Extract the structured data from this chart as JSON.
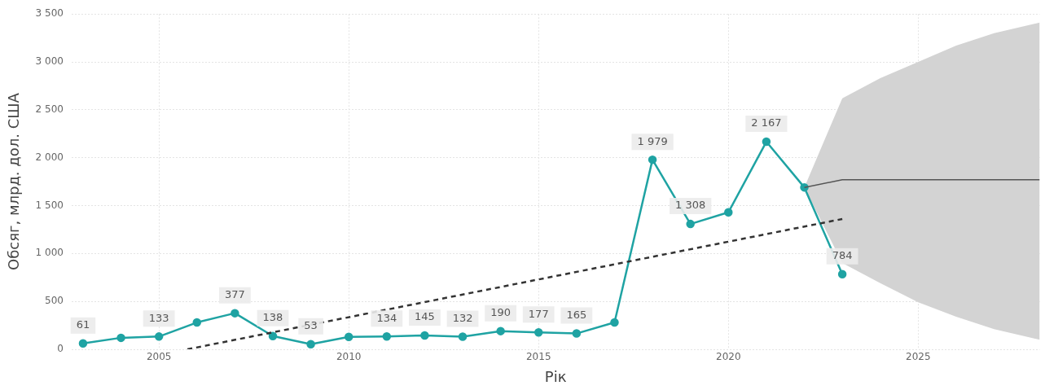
{
  "chart_data": {
    "type": "line",
    "xlabel": "Рік",
    "ylabel": "Обсяг, млрд. дол. США",
    "xlim": [
      2002.7,
      2028.2
    ],
    "xticks": [
      2005,
      2010,
      2015,
      2020,
      2025
    ],
    "ylim": [
      0,
      3500
    ],
    "yticks": [
      0,
      500,
      {
        "value": 1000,
        "label": "1 000"
      },
      {
        "value": 1500,
        "label": "1 500"
      },
      {
        "value": 2000,
        "label": "2 000"
      },
      {
        "value": 2500,
        "label": "2 500"
      },
      {
        "value": 3000,
        "label": "3 000"
      },
      {
        "value": 3500,
        "label": "3 500"
      }
    ],
    "grid": true,
    "marker": "circle",
    "series": [
      {
        "color": "#555555",
        "marker": "none",
        "x": [
          2022,
          2023,
          2024,
          2025,
          2026,
          2027,
          2028.2
        ],
        "values": [
          1690,
          1770,
          1770,
          1770,
          1770,
          1770,
          1770
        ],
        "lower": [
          1690,
          900,
          690,
          490,
          340,
          210,
          100
        ],
        "upper": [
          1690,
          2620,
          2830,
          3000,
          3170,
          3300,
          3410
        ]
      },
      {
        "color": "#333333",
        "marker": "none",
        "line_style": "dashed",
        "x": [
          2005.75,
          2023
        ],
        "values": [
          0,
          1360
        ]
      },
      {
        "color": "#1fa3a3",
        "x": [
          2003,
          2004,
          2005,
          2006,
          2007,
          2008,
          2009,
          2010,
          2011,
          2012,
          2013,
          2014,
          2015,
          2016,
          2017,
          2018,
          2019,
          2020,
          2021,
          2022,
          2023
        ],
        "values": [
          61,
          120,
          133,
          280,
          377,
          138,
          53,
          130,
          134,
          145,
          132,
          190,
          177,
          165,
          280,
          1979,
          1308,
          1430,
          2167,
          1690,
          784
        ],
        "value_labels": [
          "61",
          null,
          "133",
          null,
          "377",
          "138",
          "53",
          null,
          "134",
          "145",
          "132",
          "190",
          "177",
          "165",
          null,
          "1 979",
          "1 308",
          null,
          "2 167",
          null,
          "784"
        ]
      }
    ]
  }
}
